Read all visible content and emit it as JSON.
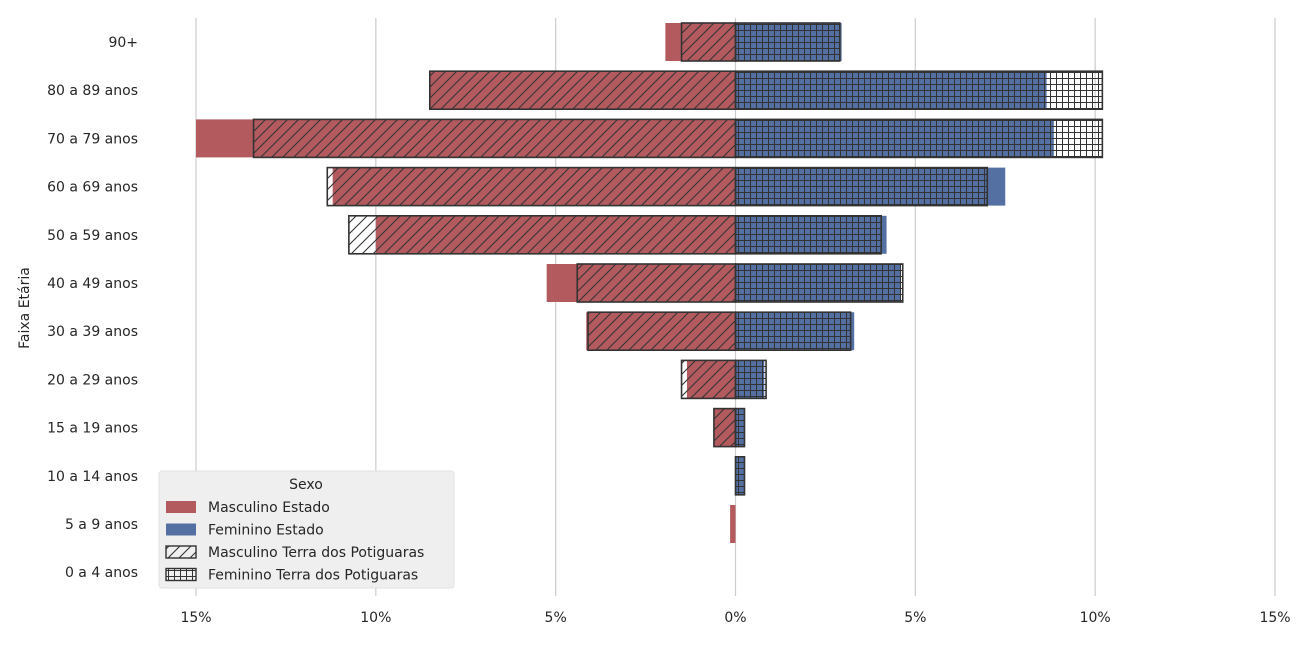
{
  "chart_data": {
    "type": "bar",
    "orientation": "horizontal",
    "subtype": "population-pyramid",
    "ylabel": "Faixa Etária",
    "categories": [
      "90+",
      "80 a 89 anos",
      "70 a 79 anos",
      "60 a 69 anos",
      "50 a 59 anos",
      "40 a 49 anos",
      "30 a 39 anos",
      "20 a 29 anos",
      "15 a 19 anos",
      "10 a 14 anos",
      "5 a 9 anos",
      "0 a 4 anos"
    ],
    "xlim": [
      -15,
      15
    ],
    "xticks": [
      -15,
      -10,
      -5,
      0,
      5,
      10,
      15
    ],
    "xtick_labels": [
      "15%",
      "10%",
      "5%",
      "0%",
      "5%",
      "10%",
      "15%"
    ],
    "grid": "vertical",
    "legend": {
      "title": "Sexo",
      "position": "bottom-left"
    },
    "series": [
      {
        "name": "Masculino Estado",
        "side": "left",
        "style": "solid",
        "color": "#b35a5f",
        "values": [
          1.95,
          8.5,
          15.0,
          11.2,
          10.0,
          5.25,
          4.15,
          1.35,
          0.6,
          0.0,
          0.15,
          0.0
        ]
      },
      {
        "name": "Feminino Estado",
        "side": "right",
        "style": "solid",
        "color": "#5470a3",
        "values": [
          2.95,
          8.65,
          8.85,
          7.5,
          4.2,
          4.6,
          3.3,
          0.8,
          0.25,
          0.25,
          0.0,
          0.0
        ]
      },
      {
        "name": "Masculino Terra dos Potiguaras",
        "side": "left",
        "style": "hatch-diagonal",
        "values": [
          1.5,
          8.5,
          13.4,
          11.35,
          10.75,
          4.4,
          4.1,
          1.5,
          0.6,
          0.0,
          0.0,
          0.0
        ]
      },
      {
        "name": "Feminino Terra dos Potiguaras",
        "side": "right",
        "style": "hatch-grid",
        "values": [
          2.9,
          10.2,
          10.2,
          7.0,
          4.05,
          4.65,
          3.2,
          0.85,
          0.25,
          0.25,
          0.0,
          0.0
        ]
      }
    ]
  }
}
